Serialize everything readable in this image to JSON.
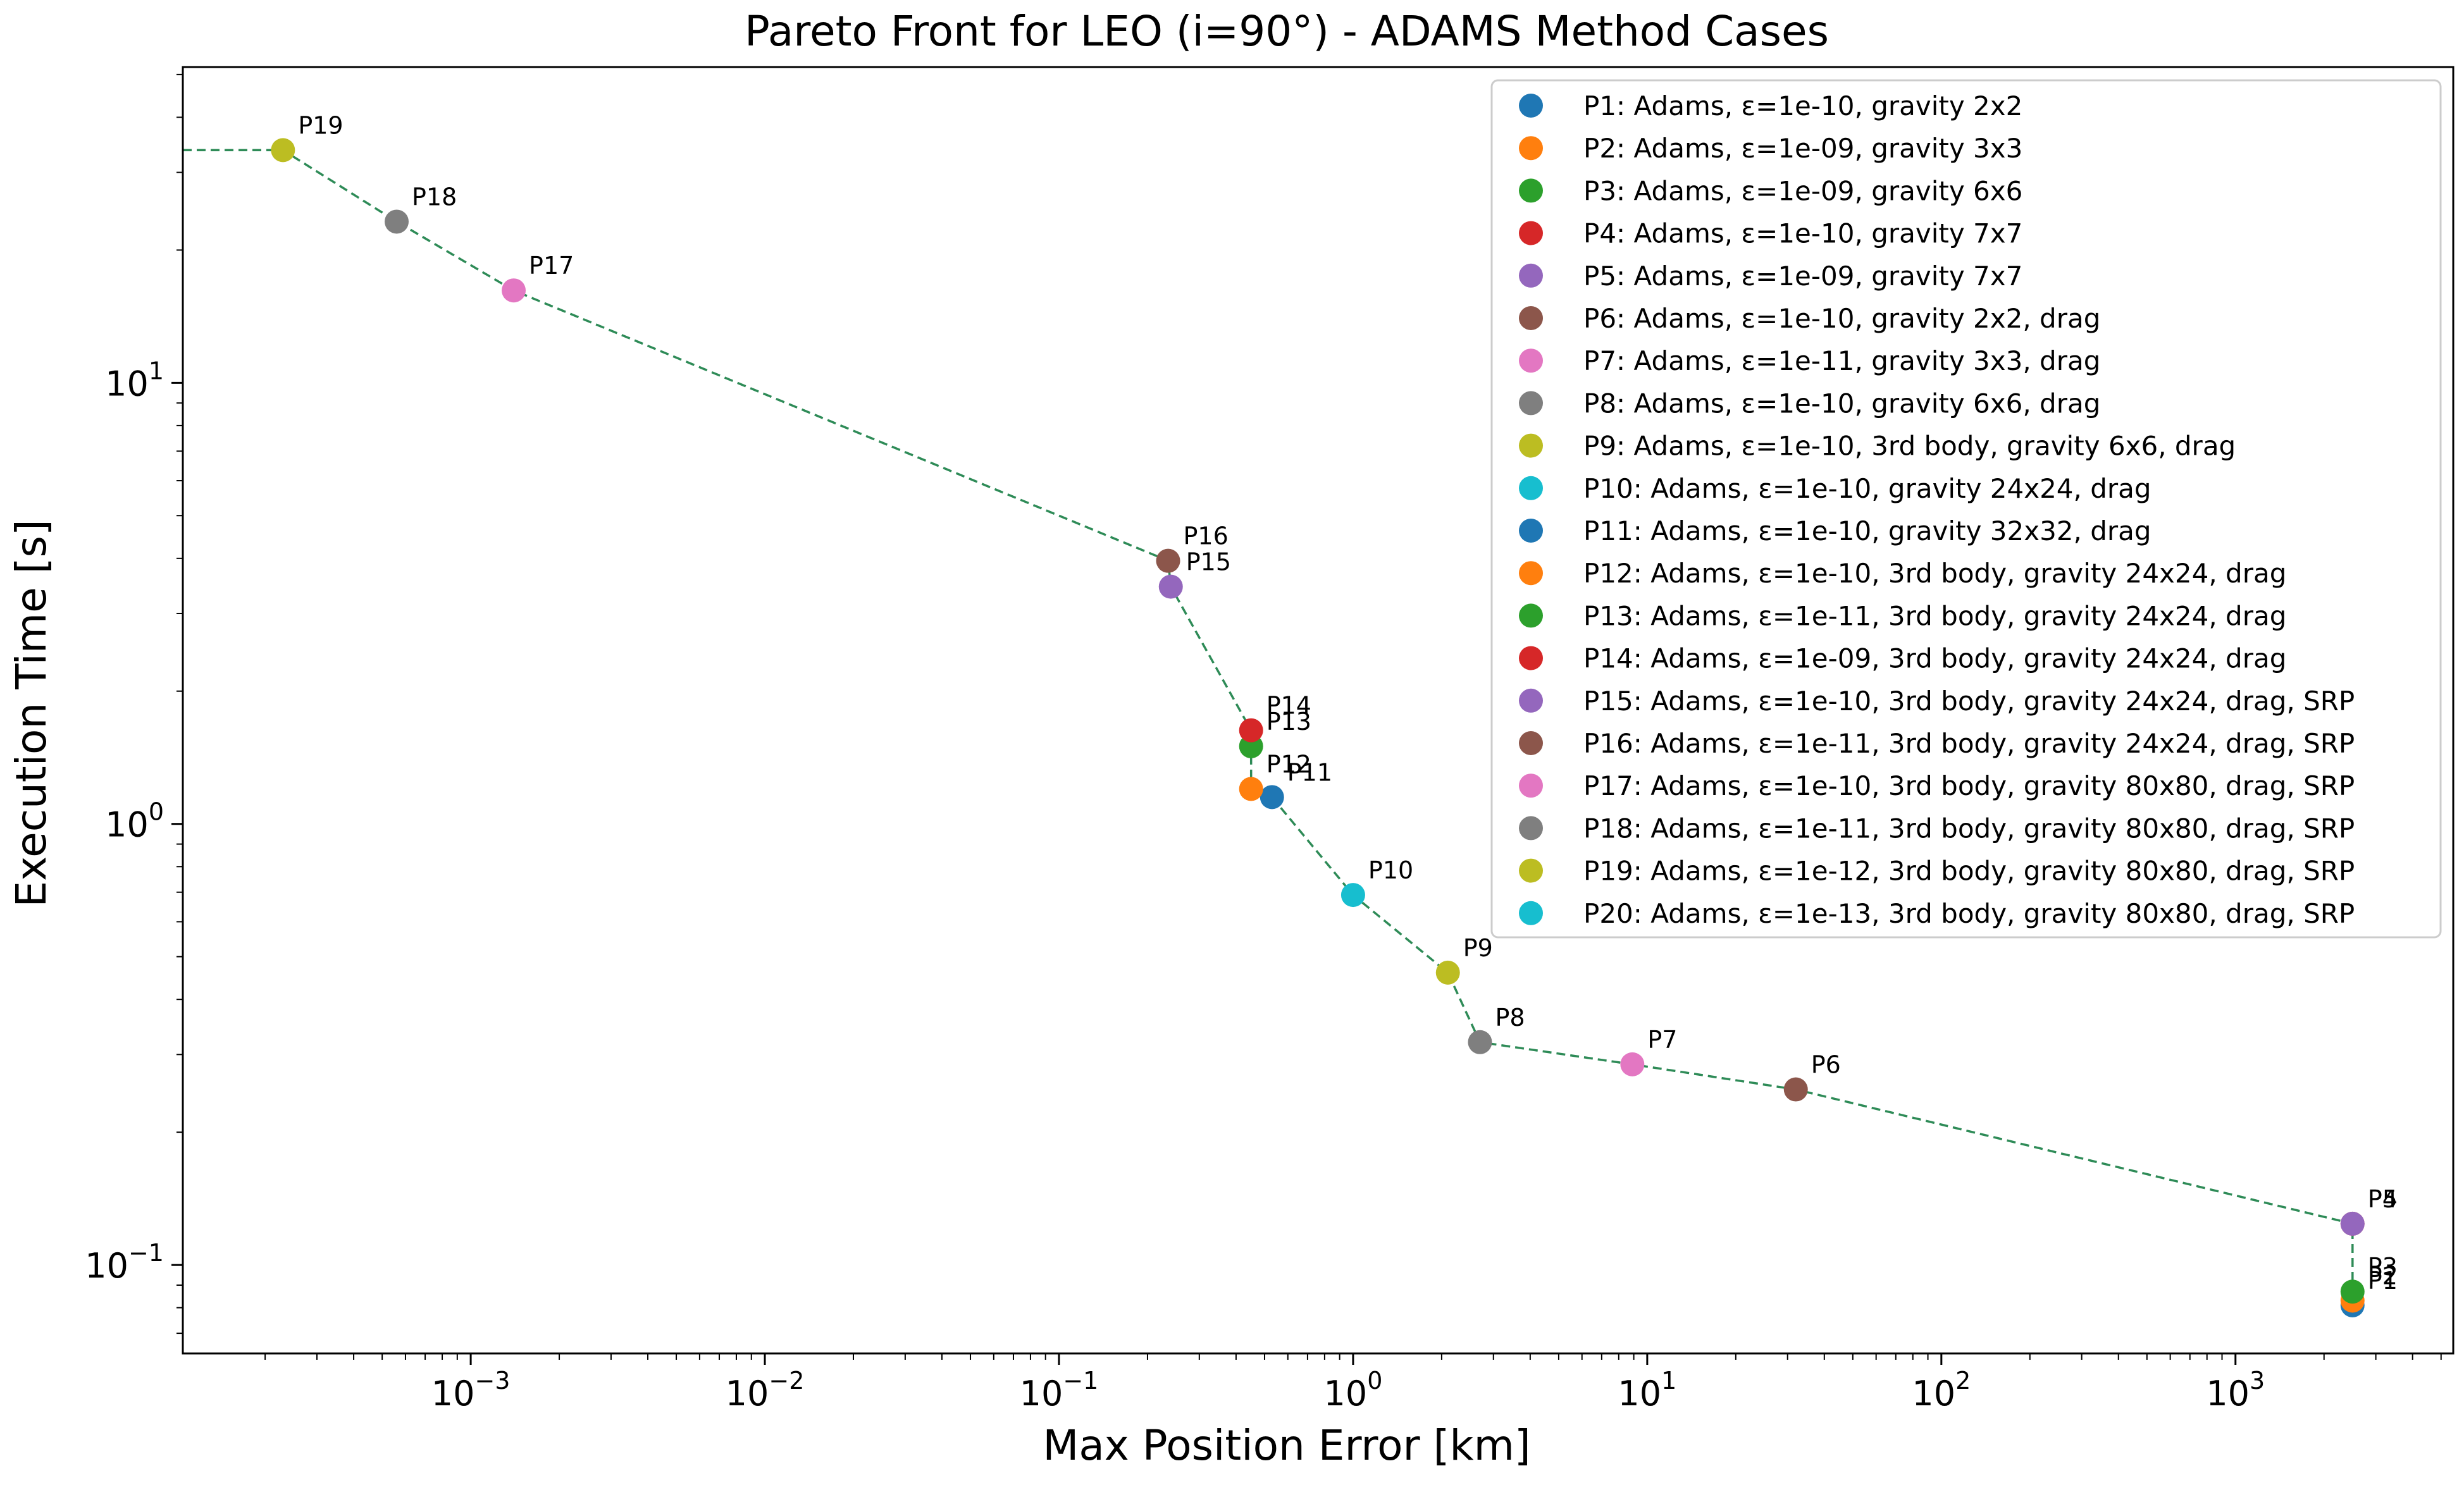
{
  "chart_data": {
    "type": "scatter",
    "title": "Pareto Front for LEO (i=90°) - ADAMS Method Cases",
    "xlabel": "Max Position Error [km]",
    "ylabel": "Execution Time [s]",
    "xscale": "log",
    "yscale": "log",
    "xlim": [
      0.000105,
      5500
    ],
    "ylim": [
      0.063,
      52
    ],
    "x_ticks": [
      {
        "value": 0.001,
        "base": "10",
        "exp": "−3"
      },
      {
        "value": 0.01,
        "base": "10",
        "exp": "−2"
      },
      {
        "value": 0.1,
        "base": "10",
        "exp": "−1"
      },
      {
        "value": 1,
        "base": "10",
        "exp": "0"
      },
      {
        "value": 10,
        "base": "10",
        "exp": "1"
      },
      {
        "value": 100,
        "base": "10",
        "exp": "2"
      },
      {
        "value": 1000,
        "base": "10",
        "exp": "3"
      }
    ],
    "y_ticks": [
      {
        "value": 0.1,
        "base": "10",
        "exp": "−1"
      },
      {
        "value": 1,
        "base": "10",
        "exp": "0"
      },
      {
        "value": 10,
        "base": "10",
        "exp": "1"
      }
    ],
    "legend_position": "top-right",
    "front_line_color": "#2e8b57",
    "points": [
      {
        "label": "P1",
        "legend": "P1: Adams, ε=1e-10, gravity 2x2",
        "x": 2500,
        "y": 0.081,
        "color": "#1f77b4"
      },
      {
        "label": "P2",
        "legend": "P2: Adams, ε=1e-09, gravity 3x3",
        "x": 2500,
        "y": 0.083,
        "color": "#ff7f0e"
      },
      {
        "label": "P3",
        "legend": "P3: Adams, ε=1e-09, gravity 6x6",
        "x": 2500,
        "y": 0.087,
        "color": "#2ca02c"
      },
      {
        "label": "P4",
        "legend": "P4: Adams, ε=1e-10, gravity 7x7",
        "x": 2500,
        "y": 0.124,
        "color": "#d62728"
      },
      {
        "label": "P5",
        "legend": "P5: Adams, ε=1e-09, gravity 7x7",
        "x": 2500,
        "y": 0.124,
        "color": "#9467bd"
      },
      {
        "label": "P6",
        "legend": "P6: Adams, ε=1e-10, gravity 2x2, drag",
        "x": 32,
        "y": 0.25,
        "color": "#8c564b"
      },
      {
        "label": "P7",
        "legend": "P7: Adams, ε=1e-11, gravity 3x3, drag",
        "x": 8.9,
        "y": 0.285,
        "color": "#e377c2"
      },
      {
        "label": "P8",
        "legend": "P8: Adams, ε=1e-10, gravity 6x6, drag",
        "x": 2.7,
        "y": 0.32,
        "color": "#7f7f7f"
      },
      {
        "label": "P9",
        "legend": "P9: Adams, ε=1e-10, 3rd body, gravity 6x6, drag",
        "x": 2.1,
        "y": 0.46,
        "color": "#bcbd22"
      },
      {
        "label": "P10",
        "legend": "P10: Adams, ε=1e-10, gravity 24x24, drag",
        "x": 1.0,
        "y": 0.69,
        "color": "#17becf"
      },
      {
        "label": "P11",
        "legend": "P11: Adams, ε=1e-10, gravity 32x32, drag",
        "x": 0.53,
        "y": 1.15,
        "color": "#1f77b4"
      },
      {
        "label": "P12",
        "legend": "P12: Adams, ε=1e-10, 3rd body, gravity 24x24, drag",
        "x": 0.45,
        "y": 1.2,
        "color": "#ff7f0e"
      },
      {
        "label": "P13",
        "legend": "P13: Adams, ε=1e-11, 3rd body, gravity 24x24, drag",
        "x": 0.45,
        "y": 1.5,
        "color": "#2ca02c"
      },
      {
        "label": "P14",
        "legend": "P14: Adams, ε=1e-09, 3rd body, gravity 24x24, drag",
        "x": 0.45,
        "y": 1.63,
        "color": "#d62728"
      },
      {
        "label": "P15",
        "legend": "P15: Adams, ε=1e-10, 3rd body, gravity 24x24, drag, SRP",
        "x": 0.24,
        "y": 3.45,
        "color": "#9467bd"
      },
      {
        "label": "P16",
        "legend": "P16: Adams, ε=1e-11, 3rd body, gravity 24x24, drag, SRP",
        "x": 0.235,
        "y": 3.95,
        "color": "#8c564b"
      },
      {
        "label": "P17",
        "legend": "P17: Adams, ε=1e-10, 3rd body, gravity 80x80, drag, SRP",
        "x": 0.0014,
        "y": 16.2,
        "color": "#e377c2"
      },
      {
        "label": "P18",
        "legend": "P18: Adams, ε=1e-11, 3rd body, gravity 80x80, drag, SRP",
        "x": 0.00056,
        "y": 23.2,
        "color": "#7f7f7f"
      },
      {
        "label": "P19",
        "legend": "P19: Adams, ε=1e-12, 3rd body, gravity 80x80, drag, SRP",
        "x": 0.00023,
        "y": 33.7,
        "color": "#bcbd22"
      },
      {
        "label": "P20",
        "legend": "P20: Adams, ε=1e-13, 3rd body, gravity 80x80, drag, SRP",
        "x": null,
        "y": null,
        "color": "#17becf"
      }
    ],
    "pareto_front": [
      [
        0.000105,
        33.7
      ],
      [
        0.00023,
        33.7
      ],
      [
        0.00056,
        23.2
      ],
      [
        0.0014,
        16.2
      ],
      [
        0.235,
        3.95
      ],
      [
        0.24,
        3.45
      ],
      [
        0.45,
        1.63
      ],
      [
        0.45,
        1.5
      ],
      [
        0.45,
        1.2
      ],
      [
        0.53,
        1.15
      ],
      [
        1.0,
        0.69
      ],
      [
        2.1,
        0.46
      ],
      [
        2.7,
        0.32
      ],
      [
        8.9,
        0.285
      ],
      [
        32,
        0.25
      ],
      [
        2500,
        0.124
      ],
      [
        2500,
        0.087
      ],
      [
        2500,
        0.083
      ],
      [
        2500,
        0.081
      ]
    ]
  }
}
